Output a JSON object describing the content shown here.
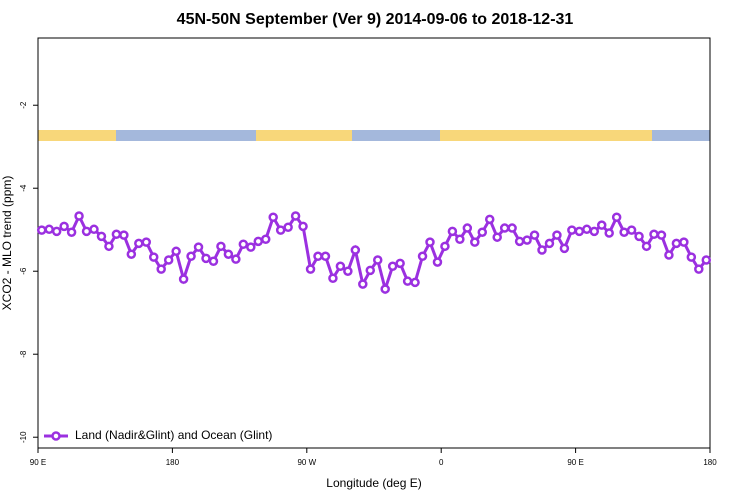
{
  "chart_data": {
    "type": "line",
    "title": "45N-50N September (Ver 9)   2014-09-06 to 2018-12-31",
    "xlabel": "Longitude (deg E)",
    "ylabel": "XCO2 - MLO trend (ppm)",
    "xlim": [
      90,
      540
    ],
    "xticks": [
      {
        "value": 90,
        "label": "90 E"
      },
      180,
      {
        "value": 270,
        "label": "90 W"
      },
      {
        "value": 360,
        "label": "0"
      },
      {
        "value": 450,
        "label": "90 E"
      },
      {
        "value": 540,
        "label": "180"
      }
    ],
    "ylim": [
      -10.26,
      -0.38
    ],
    "yticks": [
      -2,
      -4,
      -6,
      -8,
      -10
    ],
    "legend": "bottom-left",
    "x": [
      92.5,
      97.5,
      102.5,
      107.5,
      112.5,
      117.5,
      122.5,
      127.5,
      132.5,
      137.5,
      142.5,
      147.5,
      152.5,
      157.5,
      162.5,
      167.5,
      172.5,
      177.5,
      182.5,
      187.5,
      192.5,
      197.5,
      202.5,
      207.5,
      212.5,
      217.5,
      222.5,
      227.5,
      232.5,
      237.5,
      242.5,
      247.5,
      252.5,
      257.5,
      262.5,
      267.5,
      272.5,
      277.5,
      282.5,
      287.5,
      292.5,
      297.5,
      302.5,
      307.5,
      312.5,
      317.5,
      322.5,
      327.5,
      332.5,
      337.5,
      342.5,
      347.5,
      352.5,
      357.5,
      362.5,
      367.5,
      372.5,
      377.5,
      382.5,
      387.5,
      392.5,
      397.5,
      402.5,
      407.5,
      412.5,
      417.5,
      422.5,
      427.5,
      432.5,
      437.5,
      442.5,
      447.5,
      452.5,
      457.5,
      462.5,
      467.5,
      472.5,
      477.5,
      482.5,
      487.5,
      492.5,
      497.5,
      502.5,
      507.5,
      512.5,
      517.5,
      522.5,
      527.5,
      532.5,
      537.5
    ],
    "series": [
      {
        "name": "Land (Nadir&Glint) and Ocean (Glint)",
        "color": "#9b30e0",
        "values": [
          -5.01,
          -4.99,
          -5.04,
          -4.92,
          -5.06,
          -4.67,
          -5.04,
          -4.99,
          -5.16,
          -5.4,
          -5.11,
          -5.13,
          -5.59,
          -5.33,
          -5.3,
          -5.66,
          -5.95,
          -5.73,
          -5.52,
          -6.19,
          -5.64,
          -5.42,
          -5.69,
          -5.76,
          -5.4,
          -5.59,
          -5.71,
          -5.35,
          -5.42,
          -5.28,
          -5.23,
          -4.7,
          -5.01,
          -4.94,
          -4.67,
          -4.92,
          -5.95,
          -5.64,
          -5.64,
          -6.17,
          -5.88,
          -6.0,
          -5.49,
          -6.31,
          -5.98,
          -5.73,
          -6.43,
          -5.88,
          -5.81,
          -6.24,
          -6.27,
          -5.64,
          -5.3,
          -5.78,
          -5.4,
          -5.04,
          -5.23,
          -4.96,
          -5.3,
          -5.06,
          -4.75,
          -5.18,
          -4.96,
          -4.96,
          -5.28,
          -5.25,
          -5.13,
          -5.49,
          -5.33,
          -5.13,
          -5.45,
          -5.01,
          -5.04,
          -4.99,
          -5.04,
          -4.89,
          -5.08,
          -4.7,
          -5.06,
          -5.01,
          -5.16,
          -5.4,
          -5.11,
          -5.13,
          -5.61,
          -5.33,
          -5.3,
          -5.66,
          -5.95,
          -5.73
        ]
      }
    ]
  }
}
